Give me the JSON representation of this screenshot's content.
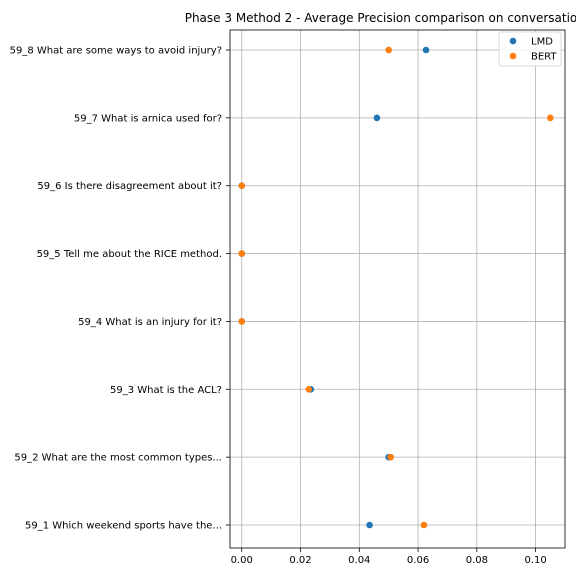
{
  "chart_data": {
    "type": "scatter",
    "title": "Phase 3 Method 2 - Average Precision comparison on conversatio",
    "xlabel": "",
    "ylabel": "",
    "xlim": [
      -0.004,
      0.11
    ],
    "x_ticks": [
      0.0,
      0.02,
      0.04,
      0.06,
      0.08,
      0.1
    ],
    "x_tick_labels": [
      "0.00",
      "0.02",
      "0.04",
      "0.06",
      "0.08",
      "0.10"
    ],
    "grid": true,
    "legend_position": "top-right",
    "categories": [
      "59_1 Which weekend sports have the...",
      "59_2 What are the most common types...",
      "59_3 What is the ACL?",
      "59_4 What is an injury for it?",
      "59_5 Tell me about the RICE method.",
      "59_6 Is there disagreement about it?",
      "59_7 What is arnica used for?",
      "59_8 What are some ways to avoid injury?"
    ],
    "series": [
      {
        "name": "LMD",
        "color": "#1f77b4",
        "values": [
          0.0435,
          0.05,
          0.0235,
          0.0,
          0.0,
          0.0,
          0.046,
          0.0627
        ]
      },
      {
        "name": "BERT",
        "color": "#ff7f0e",
        "values": [
          0.062,
          0.0507,
          0.0228,
          0.0,
          0.0,
          0.0,
          0.105,
          0.05
        ]
      }
    ]
  }
}
